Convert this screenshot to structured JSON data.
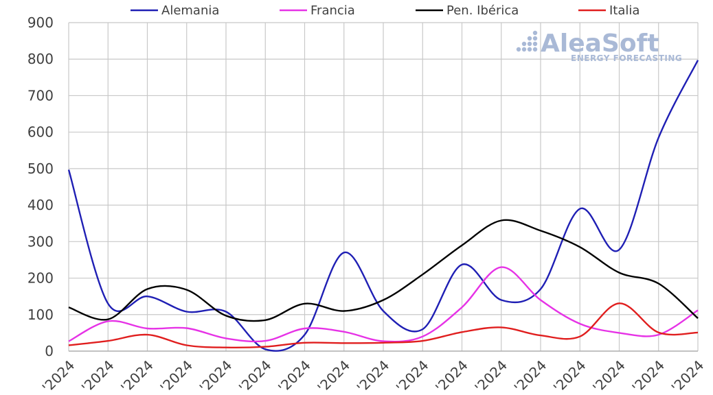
{
  "chart_data": {
    "type": "line",
    "title": "",
    "xlabel": "",
    "ylabel": "",
    "ylim": [
      0,
      900
    ],
    "yticks": [
      "0",
      "100",
      "200",
      "300",
      "400",
      "500",
      "600",
      "700",
      "800",
      "900"
    ],
    "grid": true,
    "legend_position": "top",
    "categories": [
      "'2024",
      "'2024",
      "'2024",
      "'2024",
      "'2024",
      "'2024",
      "'2024",
      "'2024",
      "'2024",
      "'2024",
      "'2024",
      "'2024",
      "'2024",
      "'2024",
      "'2024",
      "'2024",
      "'2024"
    ],
    "series": [
      {
        "name": "Alemania",
        "color": "#1f1fb4",
        "values": [
          497,
          130,
          150,
          108,
          108,
          5,
          45,
          270,
          110,
          60,
          237,
          140,
          170,
          390,
          278,
          585,
          797
        ]
      },
      {
        "name": "Francia",
        "color": "#e632e6",
        "values": [
          27,
          82,
          62,
          63,
          35,
          28,
          62,
          53,
          27,
          40,
          120,
          230,
          140,
          75,
          50,
          45,
          112
        ]
      },
      {
        "name": "Pen. Ibérica",
        "color": "#000000",
        "values": [
          120,
          87,
          170,
          168,
          97,
          85,
          130,
          110,
          140,
          210,
          290,
          358,
          330,
          285,
          215,
          185,
          90
        ]
      },
      {
        "name": "Italia",
        "color": "#e01e1e",
        "values": [
          16,
          28,
          45,
          16,
          10,
          12,
          23,
          22,
          23,
          28,
          52,
          65,
          43,
          40,
          131,
          51,
          51
        ]
      }
    ]
  },
  "watermark": {
    "brand": "AleaSoft",
    "tagline": "ENERGY FORECASTING",
    "color": "#a9b9d6"
  }
}
